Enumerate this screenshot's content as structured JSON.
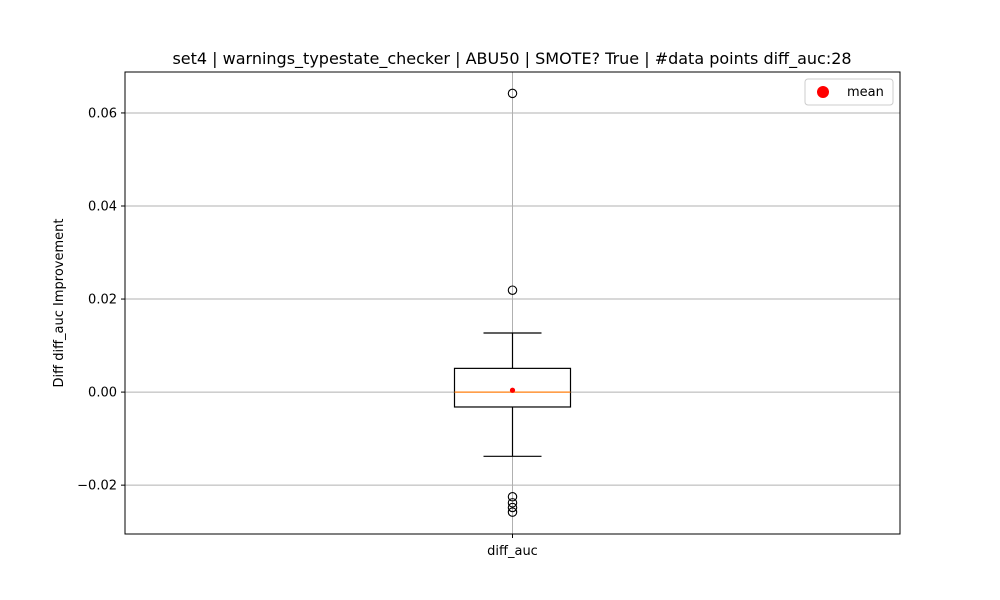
{
  "chart_data": {
    "type": "box",
    "title": "set4 | warnings_typestate_checker | ABU50 | SMOTE? True | #data points diff_auc:28",
    "xlabel": "",
    "ylabel": "Diff diff_auc Improvement",
    "categories": [
      "diff_auc"
    ],
    "ylim": [
      -0.0305,
      0.0688
    ],
    "yticks": [
      -0.02,
      0.0,
      0.02,
      0.04,
      0.06
    ],
    "ytick_labels": [
      "−0.02",
      "0.00",
      "0.02",
      "0.04",
      "0.06"
    ],
    "grid": true,
    "legend": {
      "placement": "top-right",
      "entries": [
        {
          "label": "mean",
          "color": "#ff0000"
        }
      ]
    },
    "boxes": [
      {
        "name": "diff_auc",
        "whisker_low": -0.0138,
        "q1": -0.0032,
        "median": 0.0,
        "q3": 0.0051,
        "whisker_high": 0.0127,
        "mean": 0.0004,
        "outliers": [
          0.0642,
          0.0219,
          -0.0225,
          -0.0238,
          -0.0248,
          -0.0258
        ]
      }
    ],
    "colors": {
      "box": "#000000",
      "median": "#ff7f0e",
      "mean": "#ff0000",
      "grid": "#b0b0b0"
    }
  }
}
